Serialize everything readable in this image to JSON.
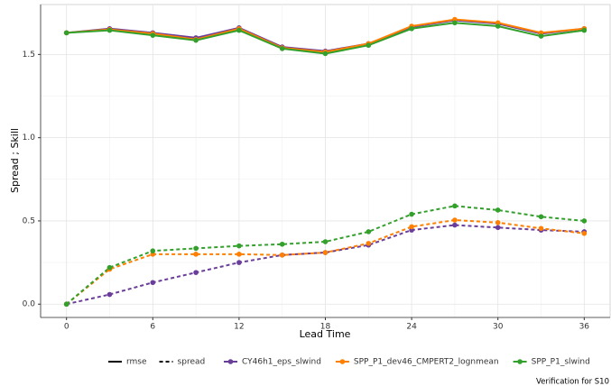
{
  "chart_data": {
    "type": "line",
    "x_label": "Lead Time",
    "y_label": "Spread ; Skill",
    "caption": "Verification for S10",
    "x": [
      0,
      3,
      6,
      9,
      12,
      15,
      18,
      21,
      24,
      27,
      30,
      33,
      36
    ],
    "linetypes": [
      "rmse",
      "spread"
    ],
    "series": [
      {
        "name": "CY46h1_eps_slwind",
        "color": "#6a3d9a",
        "rmse": [
          1.63,
          1.655,
          1.63,
          1.6,
          1.66,
          1.545,
          1.52,
          1.565,
          1.665,
          1.705,
          1.685,
          1.625,
          1.655
        ],
        "spread": [
          0,
          0.058,
          0.13,
          0.19,
          0.25,
          0.295,
          0.31,
          0.355,
          0.445,
          0.475,
          0.46,
          0.445,
          0.435
        ]
      },
      {
        "name": "SPP_P1_dev46_CMPERT2_lognmean",
        "color": "#ff7f00",
        "rmse": [
          1.63,
          1.65,
          1.625,
          1.59,
          1.655,
          1.54,
          1.515,
          1.565,
          1.67,
          1.71,
          1.69,
          1.63,
          1.655
        ],
        "spread": [
          0,
          0.21,
          0.3,
          0.3,
          0.3,
          0.295,
          0.31,
          0.365,
          0.465,
          0.505,
          0.49,
          0.455,
          0.425
        ]
      },
      {
        "name": "SPP_P1_slwind",
        "color": "#33a02c",
        "rmse": [
          1.63,
          1.645,
          1.615,
          1.585,
          1.645,
          1.535,
          1.505,
          1.555,
          1.655,
          1.69,
          1.67,
          1.61,
          1.645
        ],
        "spread": [
          0,
          0.22,
          0.32,
          0.335,
          0.35,
          0.36,
          0.375,
          0.435,
          0.54,
          0.59,
          0.565,
          0.525,
          0.5
        ]
      }
    ],
    "xlim": [
      -1.8,
      37.8
    ],
    "xticks": [
      0,
      6,
      12,
      18,
      24,
      30,
      36
    ],
    "ylim": [
      -0.08,
      1.8
    ],
    "yticks": [
      {
        "value": 0,
        "label": "0.0"
      },
      {
        "value": 0.5,
        "label": "0.5"
      },
      {
        "value": 1,
        "label": "1.0"
      },
      {
        "value": 1.5,
        "label": "1.5"
      }
    ],
    "grid": true
  }
}
